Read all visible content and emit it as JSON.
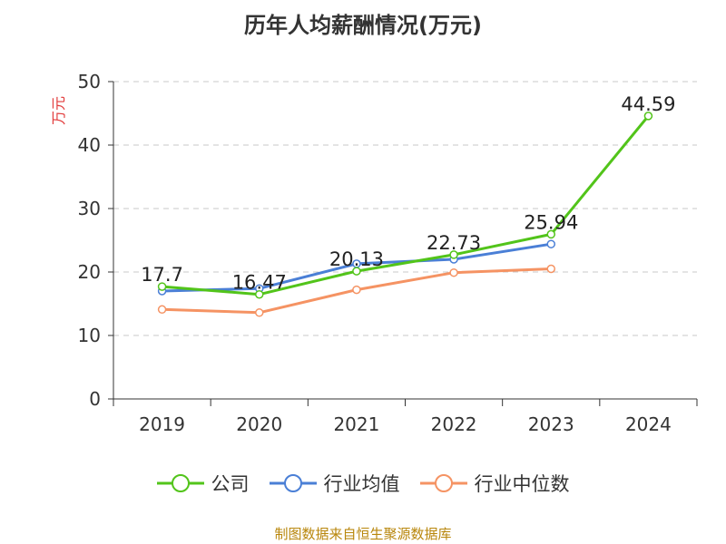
{
  "title": "历年人均薪酬情况(万元)",
  "source": "制图数据来自恒生聚源数据库",
  "colors": {
    "公司": "#52c41a",
    "行业均值": "#4a7fd6",
    "行业中位数": "#f59363",
    "grid": "#c8c8c8",
    "axis": "#333333",
    "unit": "#e23b3b"
  },
  "chart_data": {
    "type": "line",
    "title": "历年人均薪酬情况(万元)",
    "xlabel": "",
    "ylabel": "万元",
    "categories": [
      "2019",
      "2020",
      "2021",
      "2022",
      "2023",
      "2024"
    ],
    "ylim": [
      0,
      50
    ],
    "yticks": [
      0,
      10,
      20,
      30,
      40,
      50
    ],
    "grid": true,
    "legend_position": "bottom",
    "series": [
      {
        "name": "公司",
        "values": [
          17.7,
          16.47,
          20.13,
          22.73,
          25.94,
          44.59
        ],
        "labels": [
          "17.7",
          "16.47",
          "20.13",
          "22.73",
          "25.94",
          "44.59"
        ]
      },
      {
        "name": "行业均值",
        "values": [
          17.0,
          17.4,
          21.3,
          22.0,
          24.4,
          null
        ]
      },
      {
        "name": "行业中位数",
        "values": [
          14.1,
          13.6,
          17.2,
          19.9,
          20.5,
          null
        ]
      }
    ]
  }
}
